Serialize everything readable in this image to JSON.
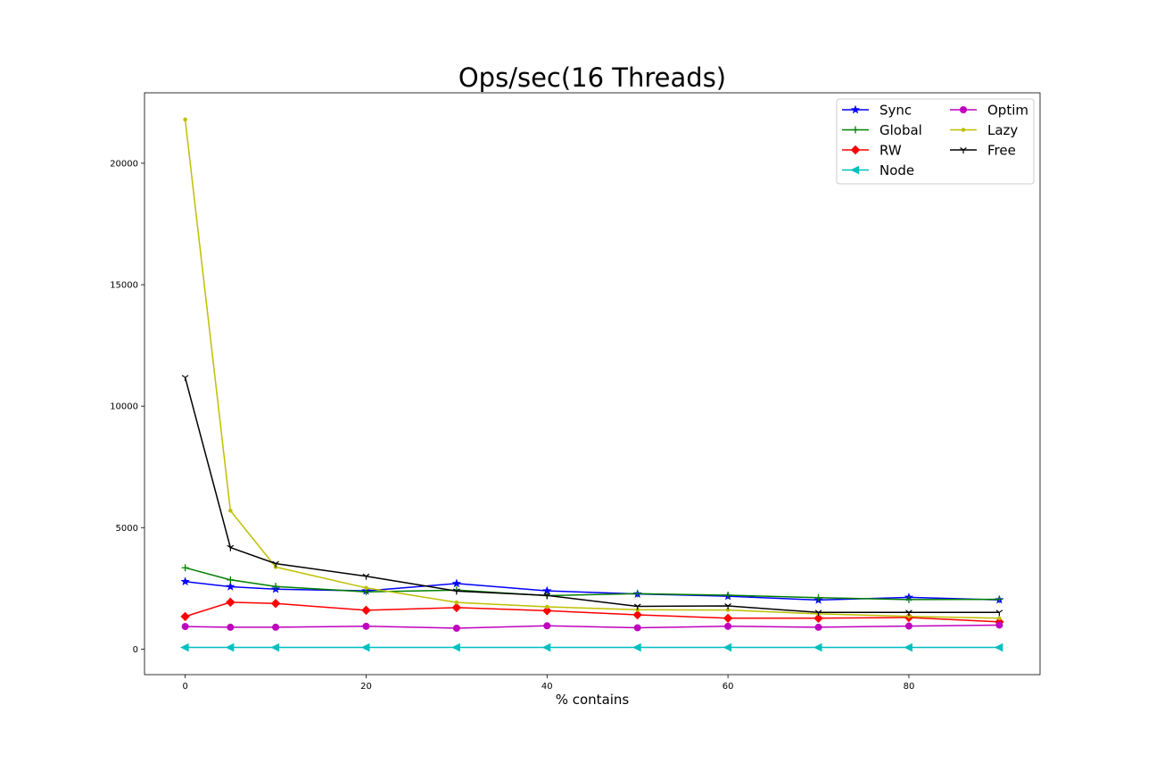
{
  "chart_data": {
    "type": "line",
    "title": "Ops/sec(16 Threads)",
    "xlabel": "% contains",
    "ylabel": "",
    "xlim": [
      -4.5,
      94.5
    ],
    "ylim": [
      -1050,
      22900
    ],
    "xticks": [
      0,
      20,
      40,
      60,
      80
    ],
    "yticks": [
      0,
      5000,
      10000,
      15000,
      20000
    ],
    "grid": false,
    "legend_position": "top-right",
    "legend_columns": 2,
    "x": [
      0,
      5,
      10,
      20,
      30,
      40,
      50,
      60,
      70,
      80,
      90
    ],
    "series": [
      {
        "name": "Sync",
        "color": "#0000ff",
        "marker": "star",
        "values": [
          2780,
          2570,
          2470,
          2400,
          2700,
          2400,
          2270,
          2180,
          2020,
          2130,
          2030
        ]
      },
      {
        "name": "Global",
        "color": "#008000",
        "marker": "plus",
        "values": [
          3350,
          2850,
          2580,
          2360,
          2430,
          2200,
          2280,
          2220,
          2120,
          2040,
          2050
        ]
      },
      {
        "name": "RW",
        "color": "#ff0000",
        "marker": "diamond",
        "values": [
          1340,
          1930,
          1880,
          1600,
          1710,
          1580,
          1410,
          1270,
          1270,
          1300,
          1120
        ]
      },
      {
        "name": "Node",
        "color": "#00bfbf",
        "marker": "triangle-left",
        "values": [
          70,
          70,
          70,
          70,
          70,
          70,
          70,
          70,
          70,
          70,
          70
        ]
      },
      {
        "name": "Optim",
        "color": "#bf00bf",
        "marker": "circle",
        "values": [
          930,
          900,
          900,
          940,
          860,
          960,
          880,
          940,
          900,
          950,
          990
        ]
      },
      {
        "name": "Lazy",
        "color": "#bfbf00",
        "marker": "point",
        "values": [
          21800,
          5700,
          3380,
          2520,
          1920,
          1740,
          1620,
          1610,
          1450,
          1350,
          1270
        ]
      },
      {
        "name": "Free",
        "color": "#000000",
        "marker": "tri-down",
        "values": [
          11180,
          4180,
          3520,
          3000,
          2390,
          2210,
          1760,
          1780,
          1510,
          1510,
          1510
        ]
      }
    ]
  }
}
